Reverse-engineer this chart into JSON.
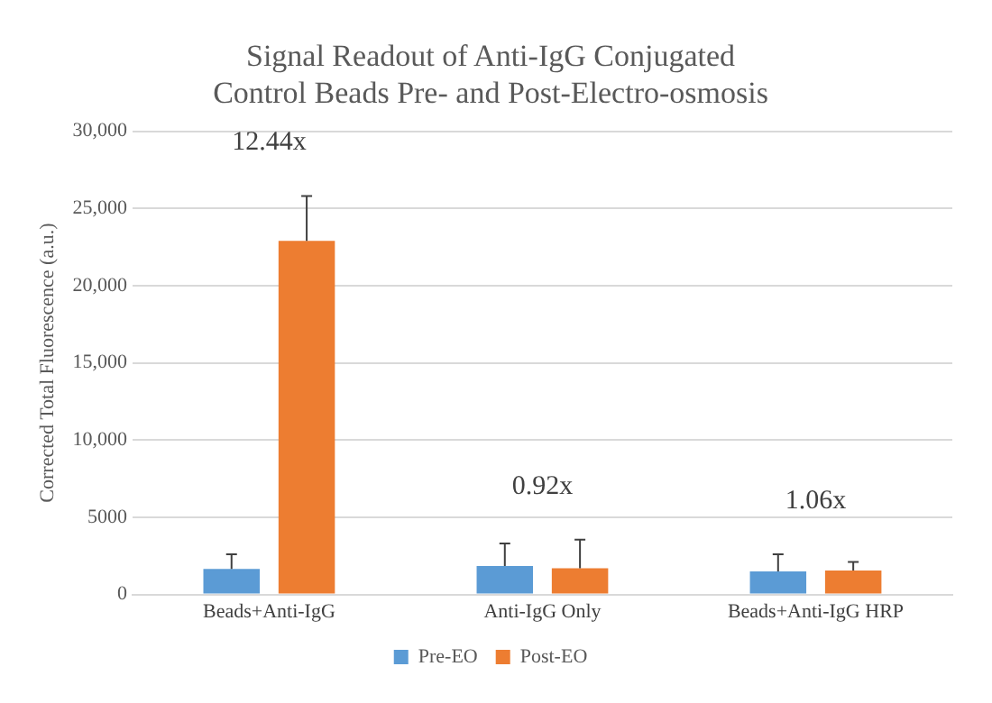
{
  "chart_data": {
    "type": "bar",
    "title": "Signal Readout of Anti-IgG Conjugated Control Beads Pre- and Post-Electro-osmosis",
    "ylabel": "Corrected Total Fluorescence (a.u.)",
    "categories": [
      "Beads+Anti-IgG",
      "Anti-IgG Only",
      "Beads+Anti-IgG HRP"
    ],
    "series": [
      {
        "name": "Pre-EO",
        "color": "#5b9bd5",
        "values": [
          1650,
          1850,
          1500
        ],
        "errors": [
          [
            1650,
            2600
          ],
          [
            1850,
            3300
          ],
          [
            1500,
            2600
          ]
        ]
      },
      {
        "name": "Post-EO",
        "color": "#ed7d31",
        "values": [
          22900,
          1700,
          1550
        ],
        "errors": [
          [
            22900,
            25800
          ],
          [
            1700,
            3550
          ],
          [
            1550,
            2100
          ]
        ]
      }
    ],
    "ylim": [
      0,
      30000
    ],
    "yticks": [
      0,
      5000,
      {
        "value": 10000,
        "label": "10,000"
      },
      {
        "value": 15000,
        "label": "15,000"
      },
      {
        "value": 20000,
        "label": "20,000"
      },
      {
        "value": 25000,
        "label": "25,000"
      },
      {
        "value": 30000,
        "label": "30,000"
      }
    ],
    "grid": "y",
    "legend": "bottom",
    "annotations": [
      "12.44x",
      "0.92x",
      "1.06x"
    ]
  }
}
